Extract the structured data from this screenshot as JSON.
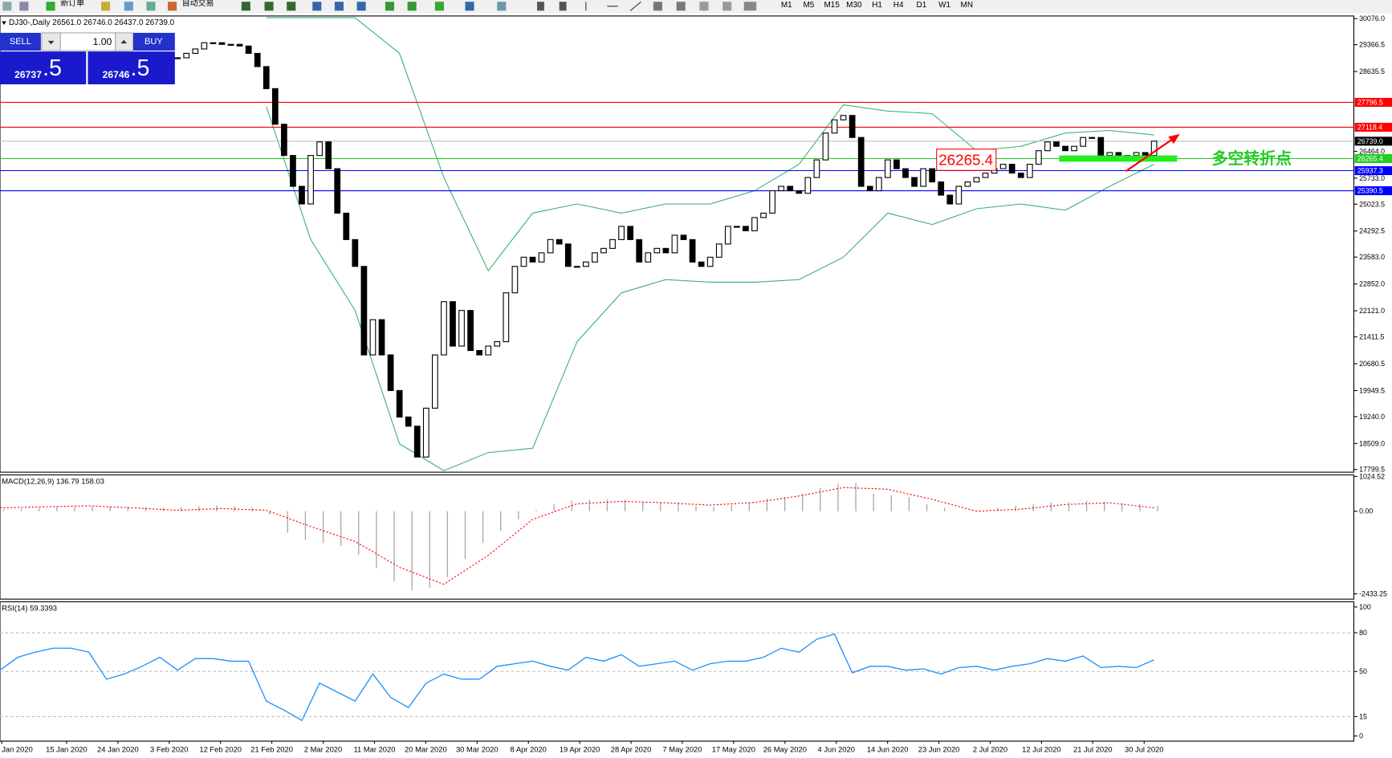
{
  "toolbar": {
    "new_order": "新订单",
    "auto_trading": "自动交易",
    "timeframes": [
      "M1",
      "M5",
      "M15",
      "M30",
      "H1",
      "H4",
      "D1",
      "W1",
      "MN"
    ]
  },
  "trade_panel": {
    "sell": "SELL",
    "buy": "BUY",
    "lots": "1.00",
    "sell_big": "26737",
    "sell_small": ".5",
    "buy_big": "26746",
    "buy_small": ".5"
  },
  "chart_data": [
    {
      "type": "candlestick",
      "title": "DJ30-,Daily 26561.0 26746.0 26437.0 26739.0",
      "closes": [
        29010,
        29130,
        29250,
        29420,
        29420,
        29375,
        29375,
        29330,
        29130,
        28770,
        28170,
        27200,
        26350,
        25510,
        25030,
        26350,
        26720,
        25990,
        24780,
        24060,
        23330,
        20920,
        21880,
        20920,
        19950,
        19230,
        18980,
        18140,
        19470,
        20920,
        22370,
        21160,
        22130,
        21040,
        20920,
        21160,
        21280,
        22610,
        23330,
        23580,
        23450,
        23700,
        24060,
        23940,
        23330,
        23330,
        23450,
        23700,
        23820,
        24060,
        24420,
        24060,
        23450,
        23700,
        23820,
        23700,
        24180,
        24060,
        23450,
        23330,
        23580,
        23940,
        24420,
        24420,
        24300,
        24660,
        24780,
        25390,
        25510,
        25390,
        25320,
        25750,
        26230,
        26960,
        27320,
        27440,
        26840,
        25510,
        25390,
        25750,
        26230,
        25990,
        25750,
        25510,
        25990,
        25630,
        25270,
        25030,
        25510,
        25630,
        25750,
        25870,
        25990,
        26110,
        25870,
        25750,
        26110,
        26480,
        26720,
        26600,
        26480,
        26600,
        26840,
        26840,
        26350,
        26430,
        26350,
        26350,
        26430,
        26350,
        26739
      ],
      "bands": {
        "color": "#3cb371",
        "upper": [
          30100,
          30100,
          30100,
          29130,
          25750,
          23210,
          24780,
          25030,
          24780,
          25030,
          25030,
          25390,
          26110,
          27730,
          27560,
          27490,
          26480,
          26600,
          26960,
          27030,
          26910
        ],
        "lower": [
          27680,
          24060,
          22130,
          18500,
          17770,
          18260,
          18380,
          21280,
          22610,
          22970,
          22900,
          22900,
          22970,
          23580,
          24780,
          24470,
          24900,
          25030,
          24860,
          25510,
          26110
        ]
      },
      "ylim": [
        17727,
        30148
      ],
      "yticks": [
        {
          "value": 30076,
          "label": "30076.0"
        },
        {
          "value": 29366.5,
          "label": "29366.5"
        },
        {
          "value": 28635.5,
          "label": "28635.5"
        },
        {
          "value": 26464,
          "label": "26464.0"
        },
        {
          "value": 25733,
          "label": "25733.0"
        },
        {
          "value": 25023.5,
          "label": "25023.5"
        },
        {
          "value": 24292.5,
          "label": "24292.5"
        },
        {
          "value": 23583,
          "label": "23583.0"
        },
        {
          "value": 22852,
          "label": "22852.0"
        },
        {
          "value": 22121,
          "label": "22121.0"
        },
        {
          "value": 21411.5,
          "label": "21411.5"
        },
        {
          "value": 20680.5,
          "label": "20680.5"
        },
        {
          "value": 19949.5,
          "label": "19949.5"
        },
        {
          "value": 19240,
          "label": "19240.0"
        },
        {
          "value": 18509,
          "label": "18509.0"
        },
        {
          "value": 17799.5,
          "label": "17799.5"
        }
      ],
      "levels": [
        {
          "value": 27796.5,
          "label": "27796.5",
          "color": "#ff0000"
        },
        {
          "value": 27118.4,
          "label": "27118.4",
          "color": "#ff0000"
        },
        {
          "value": 26739,
          "label": "26739.0",
          "color": "#000000"
        },
        {
          "value": 26265.4,
          "label": "26265.4",
          "color": "#22cc22"
        },
        {
          "value": 25937.3,
          "label": "25937.3",
          "color": "#0000ff"
        },
        {
          "value": 25390.5,
          "label": "25390.5",
          "color": "#0000ff"
        }
      ],
      "x": [
        "Jan 2020",
        "15 Jan 2020",
        "24 Jan 2020",
        "3 Feb 2020",
        "12 Feb 2020",
        "21 Feb 2020",
        "2 Mar 2020",
        "11 Mar 2020",
        "20 Mar 2020",
        "30 Mar 2020",
        "8 Apr 2020",
        "19 Apr 2020",
        "28 Apr 2020",
        "7 May 2020",
        "17 May 2020",
        "26 May 2020",
        "4 Jun 2020",
        "14 Jun 2020",
        "23 Jun 2020",
        "2 Jul 2020",
        "12 Jul 2020",
        "21 Jul 2020",
        "30 Jul 2020"
      ],
      "annotation": {
        "value": 26265.4,
        "label": "26265.4"
      },
      "note": "多空转折点"
    },
    {
      "type": "bar",
      "title": "MACD(12,26,9) 136.79 158.03",
      "values": [
        60,
        80,
        100,
        120,
        130,
        130,
        140,
        130,
        120,
        110,
        120,
        150,
        170,
        150,
        110,
        -100,
        -630,
        -840,
        -940,
        -1020,
        -1280,
        -1680,
        -2070,
        -2330,
        -2250,
        -1940,
        -1410,
        -940,
        -580,
        -240,
        30,
        210,
        310,
        340,
        340,
        340,
        290,
        260,
        260,
        160,
        130,
        180,
        260,
        370,
        420,
        520,
        680,
        810,
        840,
        520,
        470,
        420,
        210,
        100,
        0,
        30,
        100,
        160,
        210,
        260,
        260,
        310,
        290,
        240,
        210,
        160
      ],
      "signal": [
        100,
        130,
        160,
        100,
        30,
        80,
        30,
        -450,
        -890,
        -1650,
        -2150,
        -1300,
        -240,
        220,
        290,
        250,
        180,
        260,
        450,
        700,
        650,
        350,
        0,
        60,
        200,
        250,
        100
      ],
      "ylim": [
        -2590,
        1073
      ],
      "yticks": [
        {
          "value": 1024.52,
          "label": "1024.52"
        },
        {
          "value": 0,
          "label": "0.00"
        },
        {
          "value": -2433.25,
          "label": "-2433.25"
        }
      ]
    },
    {
      "type": "line",
      "title": "RSI(14) 59.3393",
      "color": "#1e90ff",
      "values": [
        51,
        61,
        65,
        68,
        68,
        65,
        44,
        48,
        54,
        61,
        51,
        60,
        60,
        58,
        58,
        27,
        20,
        12,
        41,
        34,
        27,
        48,
        30,
        22,
        41,
        48,
        44,
        44,
        54,
        56,
        58,
        54,
        51,
        61,
        58,
        63,
        54,
        56,
        58,
        51,
        56,
        58,
        58,
        61,
        68,
        65,
        75,
        79,
        49,
        54,
        54,
        51,
        52,
        48,
        53,
        54,
        51,
        54,
        56,
        60,
        58,
        62,
        53,
        54,
        53,
        59
      ],
      "ylim": [
        -4,
        104
      ],
      "yticks": [
        100,
        80,
        50,
        15,
        0
      ],
      "levels": [
        80,
        50,
        15
      ]
    }
  ]
}
